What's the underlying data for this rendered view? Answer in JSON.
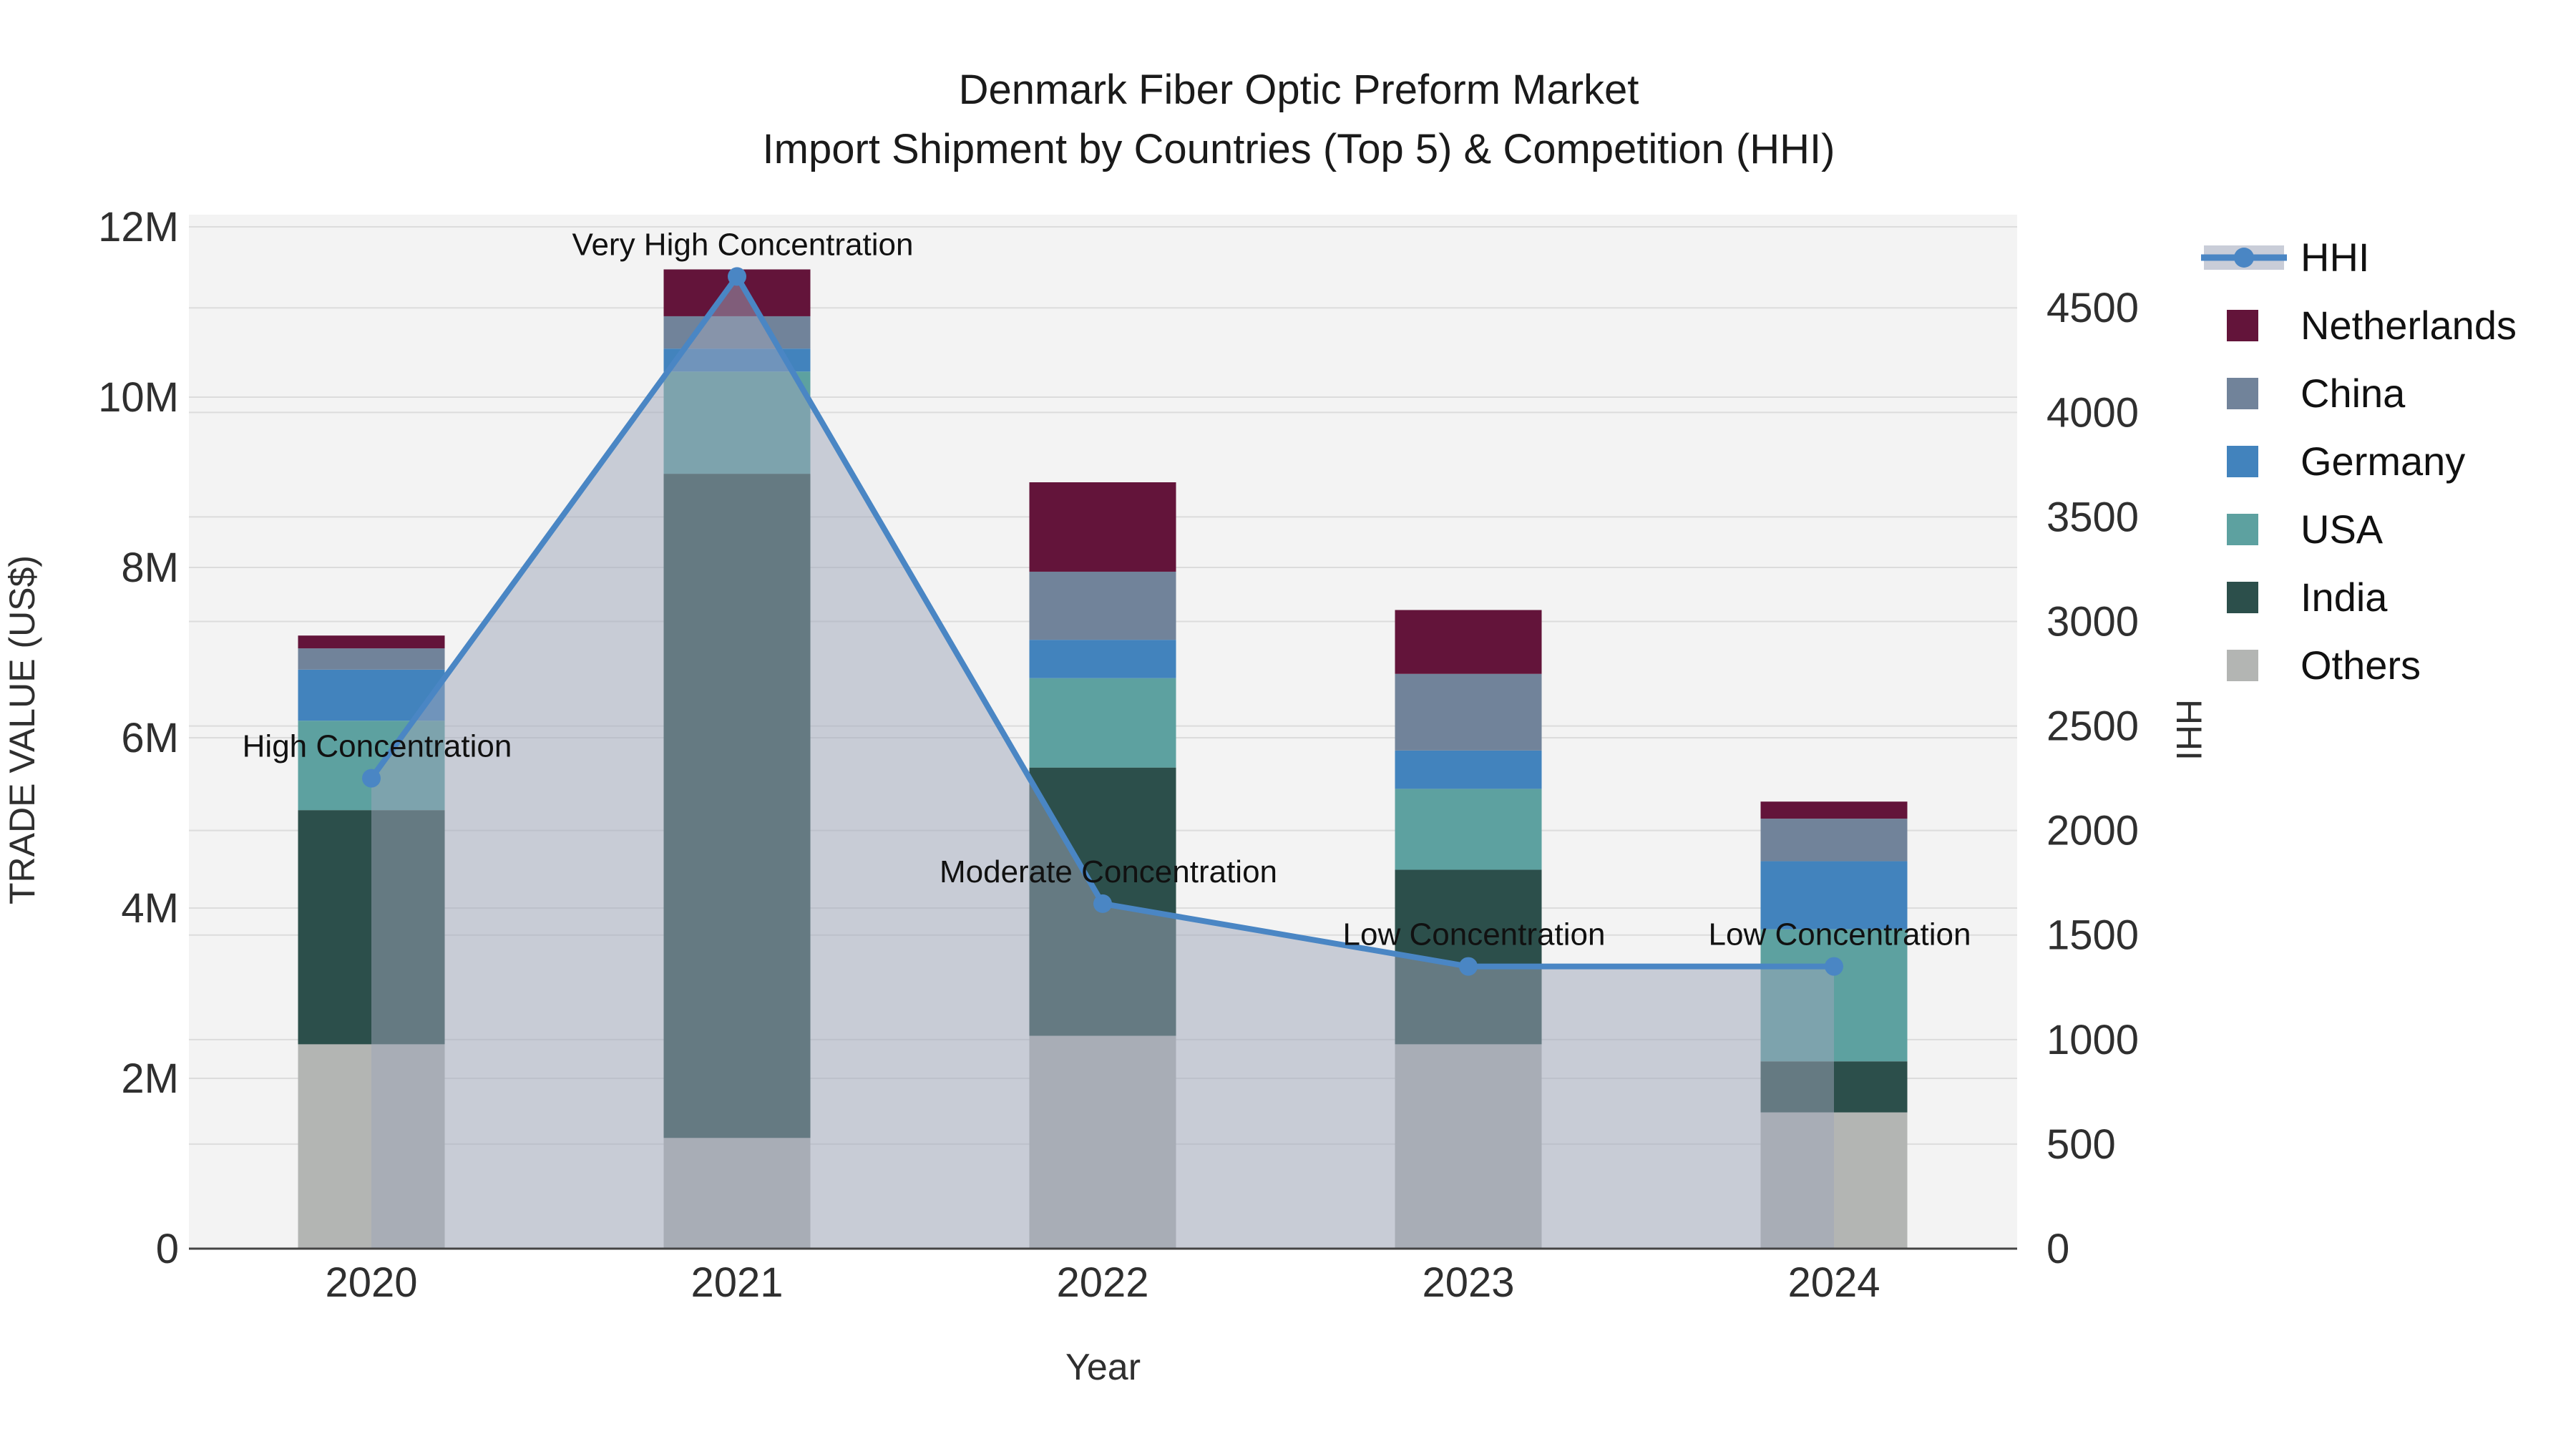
{
  "title": {
    "line1": "Denmark Fiber Optic Preform Market",
    "line2": "Import Shipment by Countries (Top 5) & Competition (HHI)"
  },
  "axes": {
    "x_title": "Year",
    "y_left_title": "TRADE VALUE (US$)",
    "y_right_title": "HHI",
    "y_left_ticks": [
      "0",
      "2M",
      "4M",
      "6M",
      "8M",
      "10M",
      "12M"
    ],
    "y_left_tick_values": [
      0,
      2,
      4,
      6,
      8,
      10,
      12
    ],
    "y_left_max": 12.2,
    "y_right_ticks": [
      "0",
      "500",
      "1000",
      "1500",
      "2000",
      "2500",
      "3000",
      "3500",
      "4000",
      "4500"
    ],
    "y_right_tick_values": [
      0,
      500,
      1000,
      1500,
      2000,
      2500,
      3000,
      3500,
      4000,
      4500
    ],
    "y_right_max": 4968
  },
  "legend": {
    "items": [
      {
        "label": "HHI",
        "type": "line",
        "color": "#4a86c4"
      },
      {
        "label": "Netherlands",
        "type": "swatch",
        "color": "#63143a"
      },
      {
        "label": "China",
        "type": "swatch",
        "color": "#71839a"
      },
      {
        "label": "Germany",
        "type": "swatch",
        "color": "#4283bd"
      },
      {
        "label": "USA",
        "type": "swatch",
        "color": "#5da1a0"
      },
      {
        "label": "India",
        "type": "swatch",
        "color": "#2c4f4b"
      },
      {
        "label": "Others",
        "type": "swatch",
        "color": "#b3b5b3"
      }
    ]
  },
  "chart_data": {
    "type": "bar+line",
    "categories": [
      "2020",
      "2021",
      "2022",
      "2023",
      "2024"
    ],
    "bar_unit": "Million US$",
    "stack_order_bottom_to_top": [
      "Others",
      "India",
      "USA",
      "Germany",
      "China",
      "Netherlands"
    ],
    "series": [
      {
        "name": "Others",
        "color": "#b3b5b3",
        "values": [
          2.4,
          1.3,
          2.5,
          2.4,
          1.6
        ]
      },
      {
        "name": "India",
        "color": "#2c4f4b",
        "values": [
          2.75,
          7.8,
          3.15,
          2.05,
          0.6
        ]
      },
      {
        "name": "USA",
        "color": "#5da1a0",
        "values": [
          1.05,
          1.2,
          1.05,
          0.95,
          1.55
        ]
      },
      {
        "name": "Germany",
        "color": "#4283bd",
        "values": [
          0.6,
          0.27,
          0.45,
          0.45,
          0.8
        ]
      },
      {
        "name": "China",
        "color": "#71839a",
        "values": [
          0.25,
          0.38,
          0.8,
          0.9,
          0.5
        ]
      },
      {
        "name": "Netherlands",
        "color": "#63143a",
        "values": [
          0.15,
          0.55,
          1.05,
          0.75,
          0.2
        ]
      }
    ],
    "bar_totals": [
      7.2,
      11.5,
      9.0,
      7.5,
      5.25
    ],
    "line_series": {
      "name": "HHI",
      "color": "#4a86c4",
      "area_fill": "rgba(157,165,185,0.5)",
      "values": [
        2250,
        4650,
        1650,
        1350,
        1350
      ]
    },
    "annotations": [
      {
        "text": "High Concentration",
        "category_index": 0
      },
      {
        "text": "Very High Concentration",
        "category_index": 1
      },
      {
        "text": "Moderate Concentration",
        "category_index": 2
      },
      {
        "text": "Low Concentration",
        "category_index": 3
      },
      {
        "text": "Low Concentration",
        "category_index": 4
      }
    ],
    "layout_hints": {
      "plot_bg": "#f3f3f3",
      "grid_color": "#dcdcdc",
      "axis_line_color": "#444444",
      "text_color": "#2f2f2f",
      "legend_position": "right",
      "grid": "both-y-axes"
    }
  }
}
